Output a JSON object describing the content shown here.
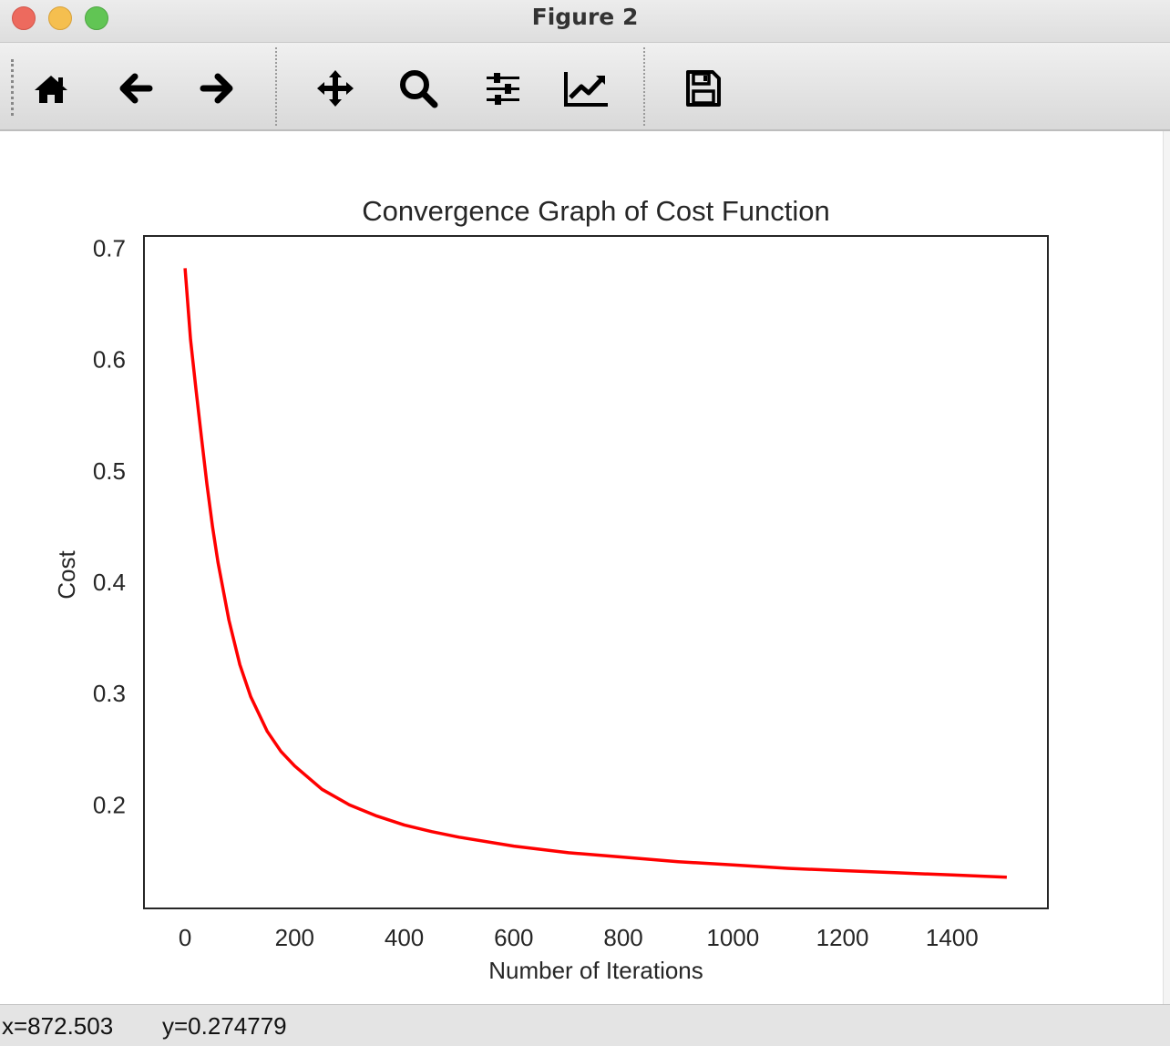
{
  "window": {
    "title": "Figure 2"
  },
  "toolbar": {
    "buttons": [
      {
        "name": "home-button",
        "icon": "home-icon"
      },
      {
        "name": "back-button",
        "icon": "arrow-left-icon"
      },
      {
        "name": "forward-button",
        "icon": "arrow-right-icon"
      },
      {
        "name": "pan-button",
        "icon": "move-arrows-icon"
      },
      {
        "name": "zoom-button",
        "icon": "magnifier-icon"
      },
      {
        "name": "subplots-button",
        "icon": "sliders-icon"
      },
      {
        "name": "edit-axis-button",
        "icon": "line-chart-icon"
      },
      {
        "name": "save-button",
        "icon": "floppy-disk-icon"
      }
    ]
  },
  "status": {
    "x_readout": "x=872.503",
    "y_readout": "y=0.274779"
  },
  "colors": {
    "line": "#ff0000",
    "axes": "#262626",
    "text": "#262626"
  },
  "chart_data": {
    "type": "line",
    "title": "Convergence Graph of Cost Function",
    "xlabel": "Number of Iterations",
    "ylabel": "Cost",
    "xlim": [
      -75,
      1575
    ],
    "ylim": [
      0.107,
      0.711
    ],
    "xticks": [
      0,
      200,
      400,
      600,
      800,
      1000,
      1200,
      1400
    ],
    "yticks": [
      0.2,
      0.3,
      0.4,
      0.5,
      0.6,
      0.7
    ],
    "ytick_labels": [
      "0.2",
      "0.3",
      "0.4",
      "0.5",
      "0.6",
      "0.7"
    ],
    "grid": false,
    "series": [
      {
        "color": "#ff0000",
        "x": [
          0,
          10,
          20,
          30,
          40,
          50,
          60,
          80,
          100,
          120,
          150,
          175,
          200,
          250,
          300,
          350,
          400,
          450,
          500,
          600,
          700,
          800,
          900,
          1000,
          1100,
          1200,
          1300,
          1400,
          1500
        ],
        "y": [
          0.682,
          0.618,
          0.573,
          0.53,
          0.488,
          0.45,
          0.418,
          0.366,
          0.326,
          0.297,
          0.266,
          0.248,
          0.235,
          0.214,
          0.2,
          0.19,
          0.182,
          0.176,
          0.171,
          0.163,
          0.157,
          0.153,
          0.149,
          0.146,
          0.143,
          0.141,
          0.139,
          0.137,
          0.135
        ]
      }
    ]
  }
}
